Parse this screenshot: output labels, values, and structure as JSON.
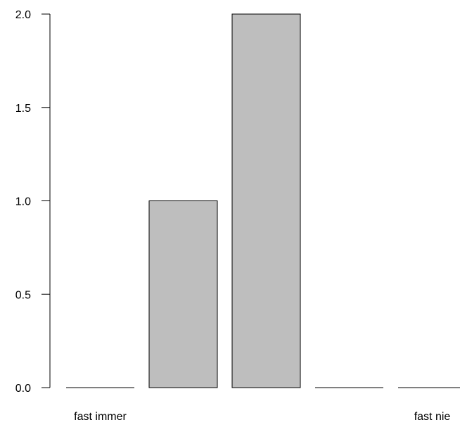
{
  "chart_data": {
    "type": "bar",
    "categories": [
      "fast immer",
      "",
      "",
      "",
      "fast nie"
    ],
    "values": [
      0,
      1,
      2,
      0,
      0
    ],
    "title": "",
    "xlabel": "",
    "ylabel": "",
    "ylim": [
      0,
      2
    ],
    "yticks": [
      "0.0",
      "0.5",
      "1.0",
      "1.5",
      "2.0"
    ],
    "grid": false,
    "legend": "none",
    "colors": {
      "bar_fill": "#bebebe",
      "bar_stroke": "#000000",
      "axis": "#000000"
    }
  }
}
